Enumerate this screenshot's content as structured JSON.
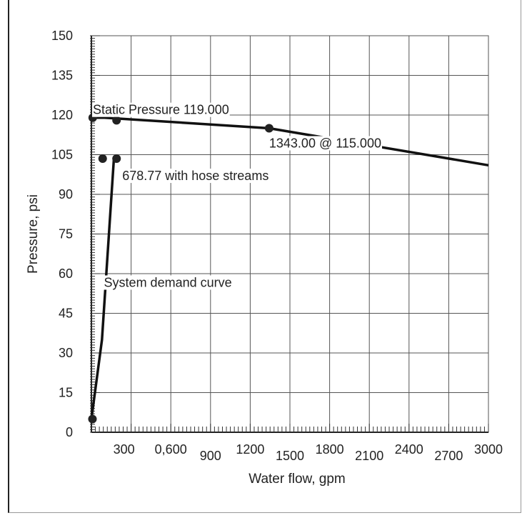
{
  "chart_data": {
    "type": "line",
    "title": "",
    "xlabel": "Water flow, gpm",
    "ylabel": "Pressure, psi",
    "xlim": [
      0,
      3000
    ],
    "ylim": [
      0,
      150
    ],
    "grid": true,
    "x_ticks": [
      300,
      600,
      900,
      1200,
      1500,
      1800,
      2100,
      2400,
      2700,
      3000
    ],
    "x_tick_labels": [
      "300",
      "0,600",
      "900",
      "1200",
      "1500",
      "1800",
      "2100",
      "2400",
      "2700",
      "3000"
    ],
    "y_ticks": [
      0,
      15,
      30,
      45,
      60,
      75,
      90,
      105,
      120,
      135,
      150
    ],
    "y_tick_labels": [
      "0",
      "15",
      "30",
      "45",
      "60",
      "75",
      "90",
      "105",
      "120",
      "135",
      "150"
    ],
    "series": [
      {
        "role": "supply",
        "x": [
          0,
          100,
          1343,
          3000
        ],
        "y": [
          119,
          119,
          115,
          101
        ]
      },
      {
        "role": "demand",
        "x": [
          0,
          80,
          170
        ],
        "y": [
          5,
          35,
          103.5
        ]
      }
    ],
    "markers": [
      {
        "x": 10,
        "y": 119
      },
      {
        "x": 190,
        "y": 118
      },
      {
        "x": 1343,
        "y": 115
      },
      {
        "x": 85,
        "y": 103.5
      },
      {
        "x": 190,
        "y": 103.5
      },
      {
        "x": 8,
        "y": 5
      }
    ],
    "annotations": [
      {
        "text": "Static Pressure 119.000",
        "x": 0,
        "y": 119
      },
      {
        "text": "1343.00 @ 115.000",
        "x": 1343,
        "y": 115
      },
      {
        "text": "678.77 with hose streams",
        "x": 190,
        "y": 103.5
      },
      {
        "text": "System demand curve",
        "x": 30,
        "y": 55
      }
    ]
  }
}
